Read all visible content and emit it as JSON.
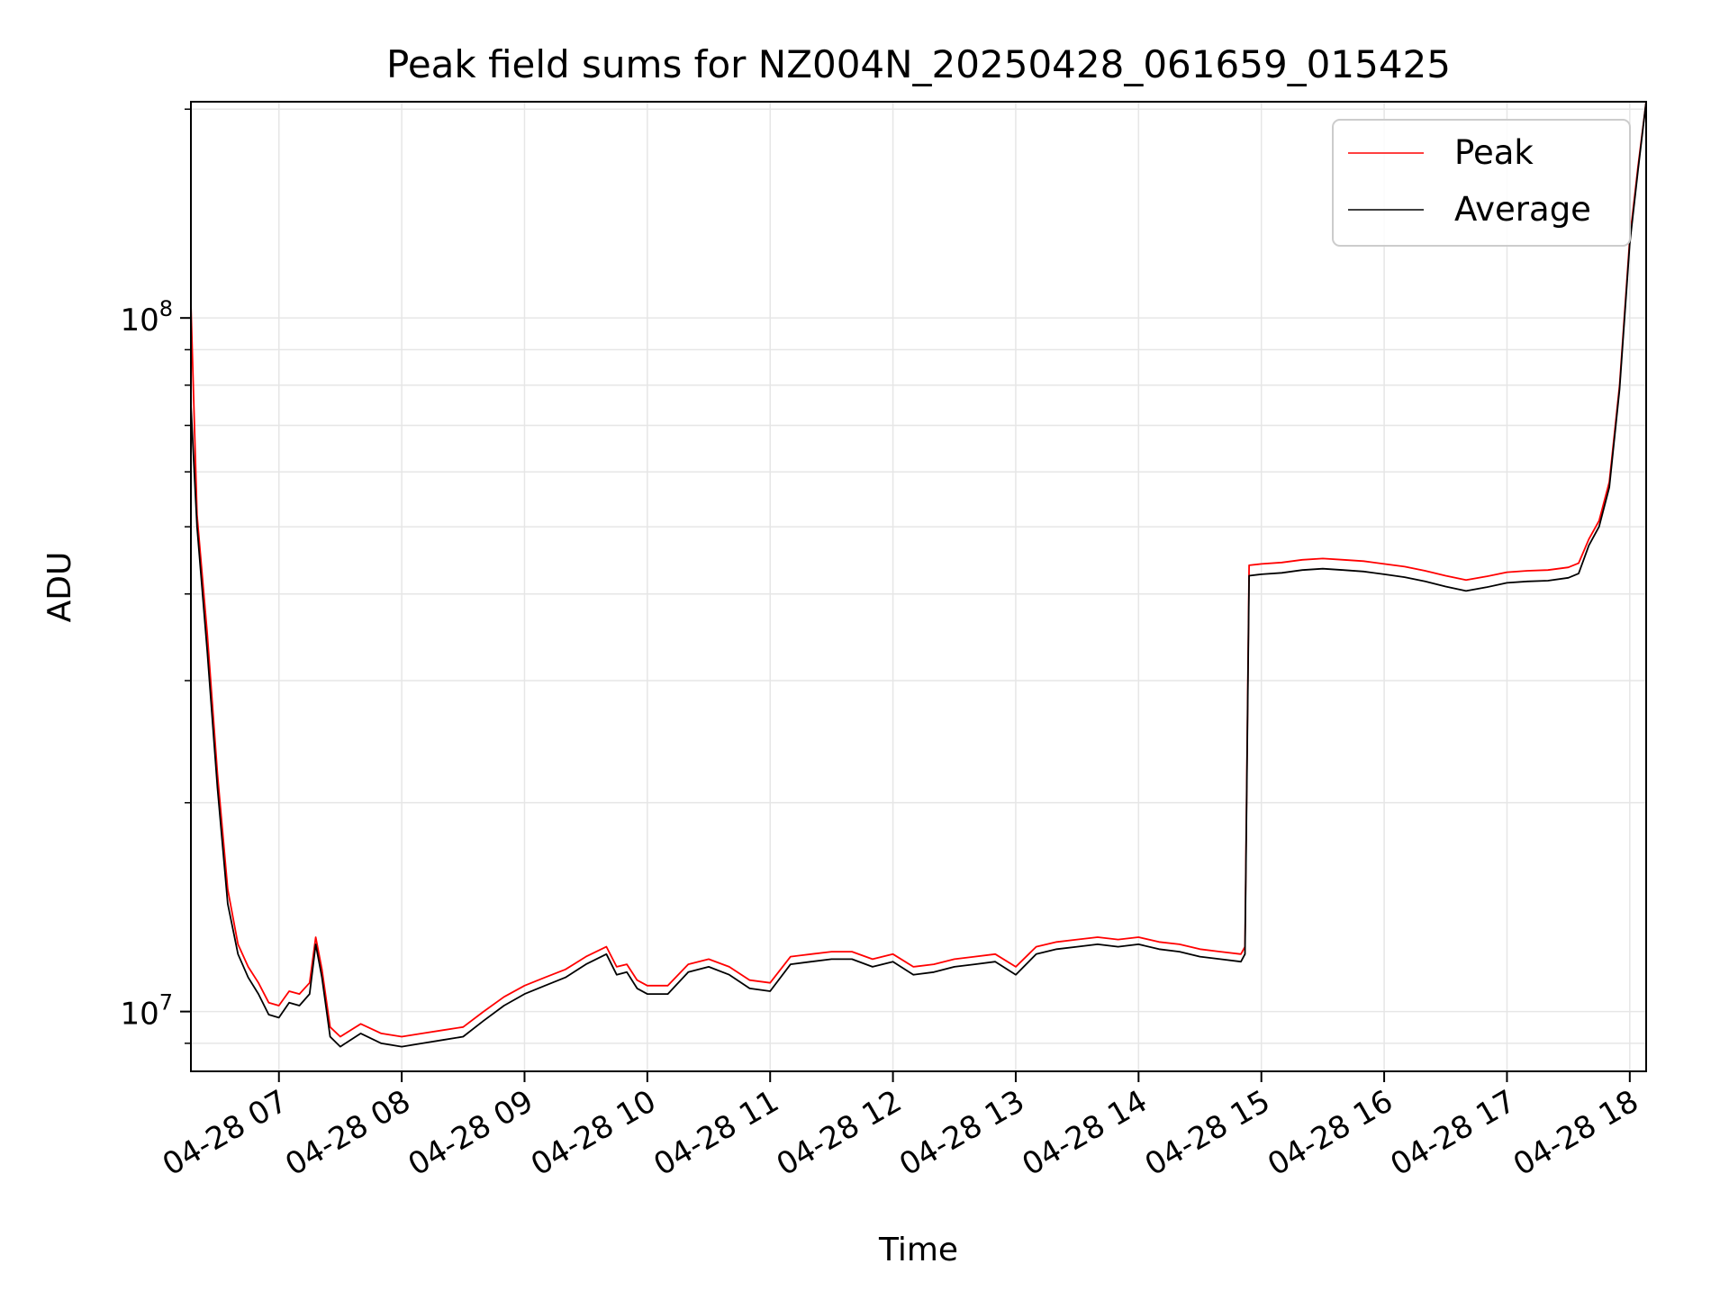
{
  "chart_data": {
    "type": "line",
    "title": "Peak field sums for NZ004N_20250428_061659_015425",
    "xlabel": "Time",
    "ylabel": "ADU",
    "yscale": "log",
    "xlim": [
      "2025-04-28 06:17",
      "2025-04-28 18:08"
    ],
    "ylim": [
      8200000,
      205000000
    ],
    "grid": true,
    "legend_position": "top-right",
    "x_ticks": [
      {
        "value": "2025-04-28 07:00",
        "label": "04-28 07"
      },
      {
        "value": "2025-04-28 08:00",
        "label": "04-28 08"
      },
      {
        "value": "2025-04-28 09:00",
        "label": "04-28 09"
      },
      {
        "value": "2025-04-28 10:00",
        "label": "04-28 10"
      },
      {
        "value": "2025-04-28 11:00",
        "label": "04-28 11"
      },
      {
        "value": "2025-04-28 12:00",
        "label": "04-28 12"
      },
      {
        "value": "2025-04-28 13:00",
        "label": "04-28 13"
      },
      {
        "value": "2025-04-28 14:00",
        "label": "04-28 14"
      },
      {
        "value": "2025-04-28 15:00",
        "label": "04-28 15"
      },
      {
        "value": "2025-04-28 16:00",
        "label": "04-28 16"
      },
      {
        "value": "2025-04-28 17:00",
        "label": "04-28 17"
      },
      {
        "value": "2025-04-28 18:00",
        "label": "04-28 18"
      }
    ],
    "y_ticks": [
      {
        "value": 10000000,
        "base": "10",
        "exp": "7"
      },
      {
        "value": 100000000,
        "base": "10",
        "exp": "8"
      }
    ],
    "x": [
      "2025-04-28 06:17",
      "2025-04-28 06:20",
      "2025-04-28 06:25",
      "2025-04-28 06:30",
      "2025-04-28 06:35",
      "2025-04-28 06:40",
      "2025-04-28 06:45",
      "2025-04-28 06:50",
      "2025-04-28 06:55",
      "2025-04-28 07:00",
      "2025-04-28 07:05",
      "2025-04-28 07:10",
      "2025-04-28 07:15",
      "2025-04-28 07:18",
      "2025-04-28 07:21",
      "2025-04-28 07:25",
      "2025-04-28 07:30",
      "2025-04-28 07:40",
      "2025-04-28 07:50",
      "2025-04-28 08:00",
      "2025-04-28 08:10",
      "2025-04-28 08:20",
      "2025-04-28 08:30",
      "2025-04-28 08:40",
      "2025-04-28 08:50",
      "2025-04-28 09:00",
      "2025-04-28 09:10",
      "2025-04-28 09:20",
      "2025-04-28 09:30",
      "2025-04-28 09:40",
      "2025-04-28 09:45",
      "2025-04-28 09:50",
      "2025-04-28 09:55",
      "2025-04-28 10:00",
      "2025-04-28 10:10",
      "2025-04-28 10:20",
      "2025-04-28 10:30",
      "2025-04-28 10:40",
      "2025-04-28 10:50",
      "2025-04-28 11:00",
      "2025-04-28 11:10",
      "2025-04-28 11:20",
      "2025-04-28 11:30",
      "2025-04-28 11:40",
      "2025-04-28 11:50",
      "2025-04-28 12:00",
      "2025-04-28 12:10",
      "2025-04-28 12:20",
      "2025-04-28 12:30",
      "2025-04-28 12:40",
      "2025-04-28 12:50",
      "2025-04-28 13:00",
      "2025-04-28 13:10",
      "2025-04-28 13:20",
      "2025-04-28 13:30",
      "2025-04-28 13:40",
      "2025-04-28 13:50",
      "2025-04-28 14:00",
      "2025-04-28 14:10",
      "2025-04-28 14:20",
      "2025-04-28 14:30",
      "2025-04-28 14:40",
      "2025-04-28 14:50",
      "2025-04-28 14:52",
      "2025-04-28 14:54",
      "2025-04-28 15:00",
      "2025-04-28 15:10",
      "2025-04-28 15:20",
      "2025-04-28 15:30",
      "2025-04-28 15:40",
      "2025-04-28 15:50",
      "2025-04-28 16:00",
      "2025-04-28 16:10",
      "2025-04-28 16:20",
      "2025-04-28 16:30",
      "2025-04-28 16:40",
      "2025-04-28 16:50",
      "2025-04-28 17:00",
      "2025-04-28 17:10",
      "2025-04-28 17:20",
      "2025-04-28 17:30",
      "2025-04-28 17:35",
      "2025-04-28 17:40",
      "2025-04-28 17:45",
      "2025-04-28 17:50",
      "2025-04-28 17:55",
      "2025-04-28 18:00",
      "2025-04-28 18:04",
      "2025-04-28 18:08"
    ],
    "series": [
      {
        "name": "Peak",
        "color": "#ff0000",
        "values": [
          105000000,
          52000000,
          35000000,
          22000000,
          15000000,
          12500000,
          11600000,
          11000000,
          10300000,
          10200000,
          10700000,
          10600000,
          11000000,
          12800000,
          11500000,
          9500000,
          9200000,
          9600000,
          9300000,
          9200000,
          9300000,
          9400000,
          9500000,
          10000000,
          10500000,
          10900000,
          11200000,
          11500000,
          12000000,
          12400000,
          11600000,
          11700000,
          11100000,
          10900000,
          10900000,
          11700000,
          11900000,
          11600000,
          11100000,
          11000000,
          12000000,
          12100000,
          12200000,
          12200000,
          11900000,
          12100000,
          11600000,
          11700000,
          11900000,
          12000000,
          12100000,
          11600000,
          12400000,
          12600000,
          12700000,
          12800000,
          12700000,
          12800000,
          12600000,
          12500000,
          12300000,
          12200000,
          12100000,
          12400000,
          44000000,
          44200000,
          44400000,
          44800000,
          45000000,
          44800000,
          44600000,
          44200000,
          43800000,
          43200000,
          42500000,
          41900000,
          42400000,
          43000000,
          43200000,
          43300000,
          43700000,
          44300000,
          48000000,
          51000000,
          58000000,
          80000000,
          130000000,
          165000000,
          205000000
        ]
      },
      {
        "name": "Average",
        "color": "#000000",
        "values": [
          75000000,
          50000000,
          33000000,
          21000000,
          14300000,
          12100000,
          11200000,
          10600000,
          9900000,
          9800000,
          10300000,
          10200000,
          10600000,
          12500000,
          11200000,
          9200000,
          8900000,
          9300000,
          9000000,
          8900000,
          9000000,
          9100000,
          9200000,
          9700000,
          10200000,
          10600000,
          10900000,
          11200000,
          11700000,
          12100000,
          11300000,
          11400000,
          10800000,
          10600000,
          10600000,
          11400000,
          11600000,
          11300000,
          10800000,
          10700000,
          11700000,
          11800000,
          11900000,
          11900000,
          11600000,
          11800000,
          11300000,
          11400000,
          11600000,
          11700000,
          11800000,
          11300000,
          12100000,
          12300000,
          12400000,
          12500000,
          12400000,
          12500000,
          12300000,
          12200000,
          12000000,
          11900000,
          11800000,
          12100000,
          42500000,
          42700000,
          42900000,
          43300000,
          43500000,
          43300000,
          43100000,
          42700000,
          42300000,
          41700000,
          41000000,
          40400000,
          40900000,
          41500000,
          41700000,
          41800000,
          42200000,
          42800000,
          47000000,
          50000000,
          57000000,
          79000000,
          128000000,
          163000000,
          205000000
        ]
      }
    ]
  }
}
